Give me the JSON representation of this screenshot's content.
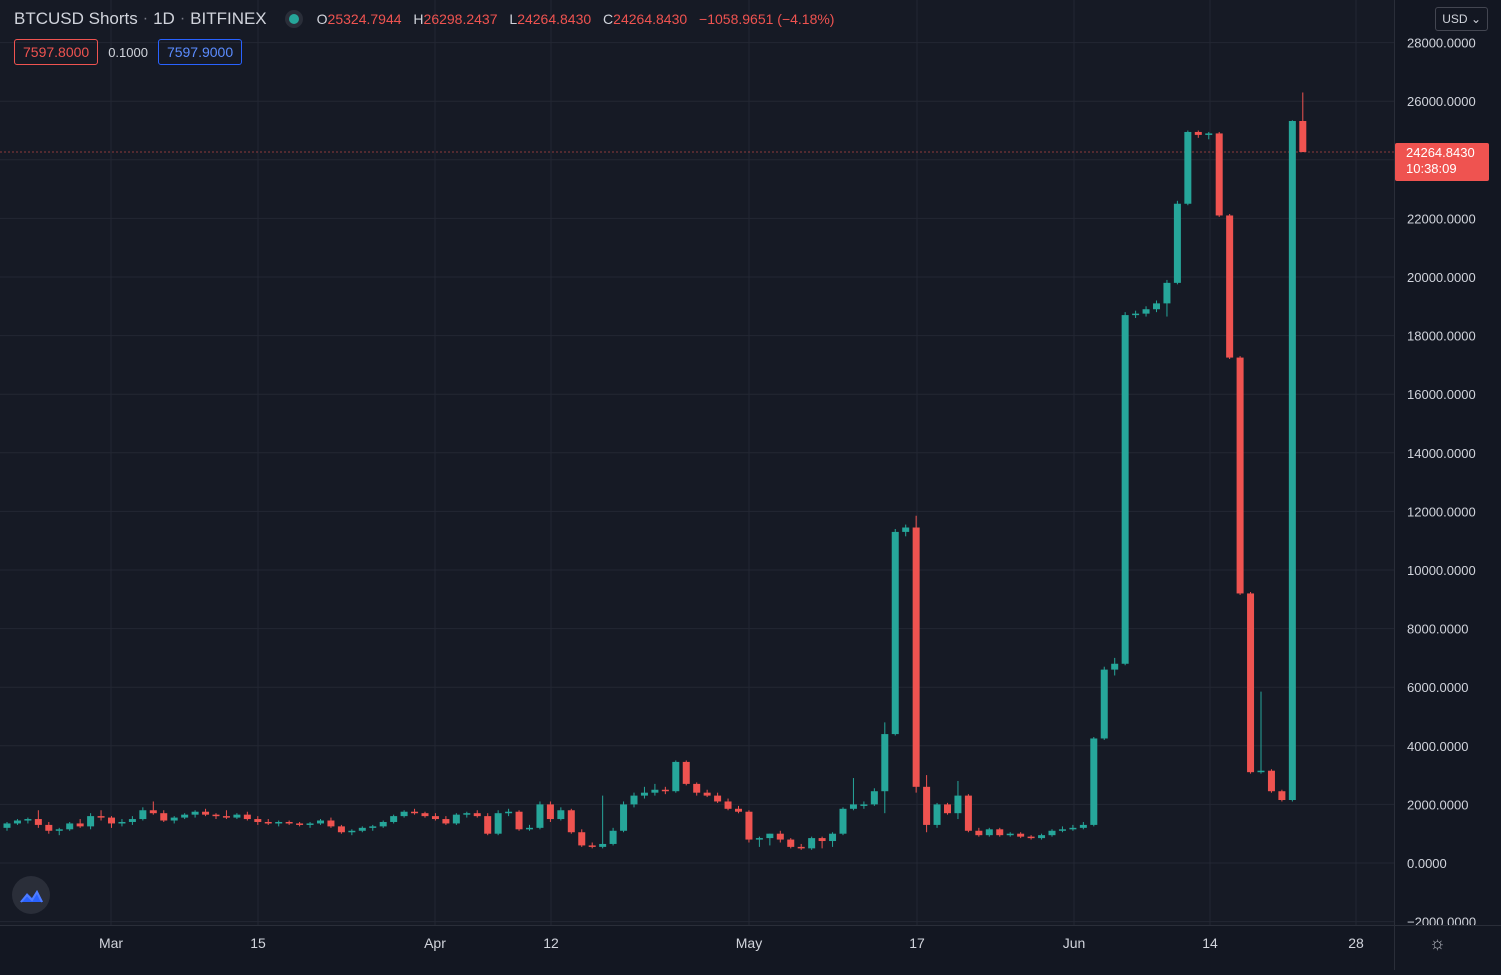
{
  "header": {
    "symbol": "BTCUSD Shorts",
    "interval": "1D",
    "exchange": "BITFINEX",
    "separator": "·",
    "ohlc": {
      "o_label": "O",
      "o_value": "25324.7944",
      "h_label": "H",
      "h_value": "26298.2437",
      "l_label": "L",
      "l_value": "24264.8430",
      "c_label": "C",
      "c_value": "24264.8430",
      "change": "−1058.9651 (−4.18%)"
    },
    "sell_price": "7597.8000",
    "spread": "0.1000",
    "buy_price": "7597.9000",
    "currency": "USD"
  },
  "price_axis": {
    "ticks": [
      "28000.0000",
      "26000.0000",
      "24000.0000",
      "22000.0000",
      "20000.0000",
      "18000.0000",
      "16000.0000",
      "14000.0000",
      "12000.0000",
      "10000.0000",
      "8000.0000",
      "6000.0000",
      "4000.0000",
      "2000.0000",
      "0.0000",
      "−2000.0000"
    ],
    "last_price": "24264.8430",
    "countdown": "10:38:09"
  },
  "time_axis": {
    "labels": [
      "Mar",
      "15",
      "Apr",
      "12",
      "May",
      "17",
      "Jun",
      "14",
      "28"
    ]
  },
  "colors": {
    "background": "#161a25",
    "up": "#26a69a",
    "down": "#ef5350",
    "grid": "#232733"
  },
  "icons": {
    "logo": "tradingview-logo-icon",
    "settings": "gear-icon",
    "status": "status-dot-icon"
  },
  "chart_data": {
    "type": "candlestick",
    "title": "BTCUSD Shorts · 1D · BITFINEX",
    "ylim": [
      -2000,
      28000
    ],
    "grid": true,
    "legend": "none",
    "candles": [
      {
        "o": 1200,
        "h": 1400,
        "l": 1100,
        "c": 1350
      },
      {
        "o": 1350,
        "h": 1500,
        "l": 1300,
        "c": 1450
      },
      {
        "o": 1450,
        "h": 1550,
        "l": 1350,
        "c": 1500
      },
      {
        "o": 1500,
        "h": 1800,
        "l": 1200,
        "c": 1300
      },
      {
        "o": 1300,
        "h": 1400,
        "l": 1000,
        "c": 1100
      },
      {
        "o": 1100,
        "h": 1200,
        "l": 950,
        "c": 1150
      },
      {
        "o": 1150,
        "h": 1400,
        "l": 1100,
        "c": 1350
      },
      {
        "o": 1350,
        "h": 1500,
        "l": 1200,
        "c": 1250
      },
      {
        "o": 1250,
        "h": 1700,
        "l": 1150,
        "c": 1600
      },
      {
        "o": 1600,
        "h": 1800,
        "l": 1450,
        "c": 1550
      },
      {
        "o": 1550,
        "h": 1600,
        "l": 1200,
        "c": 1350
      },
      {
        "o": 1350,
        "h": 1500,
        "l": 1250,
        "c": 1400
      },
      {
        "o": 1400,
        "h": 1600,
        "l": 1300,
        "c": 1500
      },
      {
        "o": 1500,
        "h": 1900,
        "l": 1450,
        "c": 1800
      },
      {
        "o": 1800,
        "h": 2100,
        "l": 1650,
        "c": 1700
      },
      {
        "o": 1700,
        "h": 1800,
        "l": 1400,
        "c": 1450
      },
      {
        "o": 1450,
        "h": 1600,
        "l": 1350,
        "c": 1550
      },
      {
        "o": 1550,
        "h": 1700,
        "l": 1500,
        "c": 1650
      },
      {
        "o": 1650,
        "h": 1800,
        "l": 1550,
        "c": 1750
      },
      {
        "o": 1750,
        "h": 1850,
        "l": 1600,
        "c": 1650
      },
      {
        "o": 1650,
        "h": 1700,
        "l": 1500,
        "c": 1600
      },
      {
        "o": 1600,
        "h": 1800,
        "l": 1500,
        "c": 1550
      },
      {
        "o": 1550,
        "h": 1700,
        "l": 1500,
        "c": 1650
      },
      {
        "o": 1650,
        "h": 1750,
        "l": 1450,
        "c": 1500
      },
      {
        "o": 1500,
        "h": 1600,
        "l": 1300,
        "c": 1400
      },
      {
        "o": 1400,
        "h": 1500,
        "l": 1300,
        "c": 1350
      },
      {
        "o": 1350,
        "h": 1450,
        "l": 1250,
        "c": 1400
      },
      {
        "o": 1400,
        "h": 1450,
        "l": 1300,
        "c": 1350
      },
      {
        "o": 1350,
        "h": 1400,
        "l": 1250,
        "c": 1300
      },
      {
        "o": 1300,
        "h": 1400,
        "l": 1200,
        "c": 1350
      },
      {
        "o": 1350,
        "h": 1500,
        "l": 1300,
        "c": 1450
      },
      {
        "o": 1450,
        "h": 1550,
        "l": 1200,
        "c": 1250
      },
      {
        "o": 1250,
        "h": 1300,
        "l": 1000,
        "c": 1050
      },
      {
        "o": 1050,
        "h": 1150,
        "l": 950,
        "c": 1100
      },
      {
        "o": 1100,
        "h": 1250,
        "l": 1050,
        "c": 1200
      },
      {
        "o": 1200,
        "h": 1300,
        "l": 1100,
        "c": 1250
      },
      {
        "o": 1250,
        "h": 1450,
        "l": 1200,
        "c": 1400
      },
      {
        "o": 1400,
        "h": 1650,
        "l": 1350,
        "c": 1600
      },
      {
        "o": 1600,
        "h": 1800,
        "l": 1550,
        "c": 1750
      },
      {
        "o": 1750,
        "h": 1850,
        "l": 1650,
        "c": 1700
      },
      {
        "o": 1700,
        "h": 1750,
        "l": 1550,
        "c": 1600
      },
      {
        "o": 1600,
        "h": 1700,
        "l": 1450,
        "c": 1500
      },
      {
        "o": 1500,
        "h": 1600,
        "l": 1300,
        "c": 1350
      },
      {
        "o": 1350,
        "h": 1700,
        "l": 1300,
        "c": 1650
      },
      {
        "o": 1650,
        "h": 1750,
        "l": 1550,
        "c": 1700
      },
      {
        "o": 1700,
        "h": 1800,
        "l": 1550,
        "c": 1600
      },
      {
        "o": 1600,
        "h": 1700,
        "l": 950,
        "c": 1000
      },
      {
        "o": 1000,
        "h": 1800,
        "l": 950,
        "c": 1700
      },
      {
        "o": 1700,
        "h": 1850,
        "l": 1600,
        "c": 1750
      },
      {
        "o": 1750,
        "h": 1800,
        "l": 1100,
        "c": 1150
      },
      {
        "o": 1150,
        "h": 1300,
        "l": 1100,
        "c": 1200
      },
      {
        "o": 1200,
        "h": 2100,
        "l": 1150,
        "c": 2000
      },
      {
        "o": 2000,
        "h": 2100,
        "l": 1400,
        "c": 1500
      },
      {
        "o": 1500,
        "h": 1900,
        "l": 1450,
        "c": 1800
      },
      {
        "o": 1800,
        "h": 1850,
        "l": 1000,
        "c": 1050
      },
      {
        "o": 1050,
        "h": 1150,
        "l": 550,
        "c": 600
      },
      {
        "o": 600,
        "h": 700,
        "l": 500,
        "c": 550
      },
      {
        "o": 550,
        "h": 2300,
        "l": 500,
        "c": 650
      },
      {
        "o": 650,
        "h": 1200,
        "l": 600,
        "c": 1100
      },
      {
        "o": 1100,
        "h": 2100,
        "l": 1050,
        "c": 2000
      },
      {
        "o": 2000,
        "h": 2400,
        "l": 1900,
        "c": 2300
      },
      {
        "o": 2300,
        "h": 2600,
        "l": 2200,
        "c": 2400
      },
      {
        "o": 2400,
        "h": 2700,
        "l": 2300,
        "c": 2500
      },
      {
        "o": 2500,
        "h": 2600,
        "l": 2350,
        "c": 2450
      },
      {
        "o": 2450,
        "h": 3500,
        "l": 2400,
        "c": 3450
      },
      {
        "o": 3450,
        "h": 3500,
        "l": 2650,
        "c": 2700
      },
      {
        "o": 2700,
        "h": 2750,
        "l": 2300,
        "c": 2400
      },
      {
        "o": 2400,
        "h": 2500,
        "l": 2250,
        "c": 2300
      },
      {
        "o": 2300,
        "h": 2400,
        "l": 2050,
        "c": 2100
      },
      {
        "o": 2100,
        "h": 2200,
        "l": 1800,
        "c": 1850
      },
      {
        "o": 1850,
        "h": 1950,
        "l": 1700,
        "c": 1750
      },
      {
        "o": 1750,
        "h": 1800,
        "l": 700,
        "c": 800
      },
      {
        "o": 800,
        "h": 900,
        "l": 550,
        "c": 850
      },
      {
        "o": 850,
        "h": 1000,
        "l": 600,
        "c": 1000
      },
      {
        "o": 1000,
        "h": 1100,
        "l": 700,
        "c": 800
      },
      {
        "o": 800,
        "h": 850,
        "l": 500,
        "c": 550
      },
      {
        "o": 550,
        "h": 650,
        "l": 450,
        "c": 500
      },
      {
        "o": 500,
        "h": 900,
        "l": 450,
        "c": 850
      },
      {
        "o": 850,
        "h": 900,
        "l": 500,
        "c": 750
      },
      {
        "o": 750,
        "h": 1050,
        "l": 550,
        "c": 1000
      },
      {
        "o": 1000,
        "h": 1900,
        "l": 950,
        "c": 1850
      },
      {
        "o": 1850,
        "h": 2900,
        "l": 1800,
        "c": 2000
      },
      {
        "o": 2000,
        "h": 2100,
        "l": 1850,
        "c": 2000
      },
      {
        "o": 2000,
        "h": 2550,
        "l": 1950,
        "c": 2450
      },
      {
        "o": 2450,
        "h": 4800,
        "l": 1700,
        "c": 4400
      },
      {
        "o": 4400,
        "h": 11400,
        "l": 4350,
        "c": 11300
      },
      {
        "o": 11300,
        "h": 11550,
        "l": 11150,
        "c": 11450
      },
      {
        "o": 11450,
        "h": 11850,
        "l": 2400,
        "c": 2600
      },
      {
        "o": 2600,
        "h": 3000,
        "l": 1050,
        "c": 1300
      },
      {
        "o": 1300,
        "h": 2050,
        "l": 1200,
        "c": 2000
      },
      {
        "o": 2000,
        "h": 2050,
        "l": 1650,
        "c": 1700
      },
      {
        "o": 1700,
        "h": 2800,
        "l": 1500,
        "c": 2300
      },
      {
        "o": 2300,
        "h": 2350,
        "l": 1050,
        "c": 1100
      },
      {
        "o": 1100,
        "h": 1200,
        "l": 900,
        "c": 950
      },
      {
        "o": 950,
        "h": 1200,
        "l": 900,
        "c": 1150
      },
      {
        "o": 1150,
        "h": 1200,
        "l": 900,
        "c": 950
      },
      {
        "o": 950,
        "h": 1050,
        "l": 900,
        "c": 1000
      },
      {
        "o": 1000,
        "h": 1050,
        "l": 850,
        "c": 900
      },
      {
        "o": 900,
        "h": 950,
        "l": 800,
        "c": 850
      },
      {
        "o": 850,
        "h": 1000,
        "l": 800,
        "c": 950
      },
      {
        "o": 950,
        "h": 1150,
        "l": 900,
        "c": 1100
      },
      {
        "o": 1100,
        "h": 1250,
        "l": 1050,
        "c": 1150
      },
      {
        "o": 1150,
        "h": 1300,
        "l": 1100,
        "c": 1200
      },
      {
        "o": 1200,
        "h": 1400,
        "l": 1150,
        "c": 1300
      },
      {
        "o": 1300,
        "h": 4300,
        "l": 1250,
        "c": 4250
      },
      {
        "o": 4250,
        "h": 6700,
        "l": 4200,
        "c": 6600
      },
      {
        "o": 6600,
        "h": 7000,
        "l": 6400,
        "c": 6800
      },
      {
        "o": 6800,
        "h": 18800,
        "l": 6750,
        "c": 18700
      },
      {
        "o": 18700,
        "h": 18850,
        "l": 18600,
        "c": 18750
      },
      {
        "o": 18750,
        "h": 19000,
        "l": 18650,
        "c": 18900
      },
      {
        "o": 18900,
        "h": 19200,
        "l": 18800,
        "c": 19100
      },
      {
        "o": 19100,
        "h": 19900,
        "l": 18650,
        "c": 19800
      },
      {
        "o": 19800,
        "h": 22600,
        "l": 19750,
        "c": 22500
      },
      {
        "o": 22500,
        "h": 25000,
        "l": 22450,
        "c": 24950
      },
      {
        "o": 24950,
        "h": 25000,
        "l": 24750,
        "c": 24850
      },
      {
        "o": 24850,
        "h": 24950,
        "l": 24700,
        "c": 24900
      },
      {
        "o": 24900,
        "h": 24950,
        "l": 22050,
        "c": 22100
      },
      {
        "o": 22100,
        "h": 22150,
        "l": 17200,
        "c": 17250
      },
      {
        "o": 17250,
        "h": 17300,
        "l": 9150,
        "c": 9200
      },
      {
        "o": 9200,
        "h": 9250,
        "l": 3050,
        "c": 3100
      },
      {
        "o": 3100,
        "h": 5850,
        "l": 3050,
        "c": 3150
      },
      {
        "o": 3150,
        "h": 3200,
        "l": 2400,
        "c": 2450
      },
      {
        "o": 2450,
        "h": 2500,
        "l": 2100,
        "c": 2150
      },
      {
        "o": 2150,
        "h": 25350,
        "l": 2100,
        "c": 25324.7944
      },
      {
        "o": 25324.7944,
        "h": 26298.2437,
        "l": 24264.843,
        "c": 24264.843
      }
    ]
  }
}
